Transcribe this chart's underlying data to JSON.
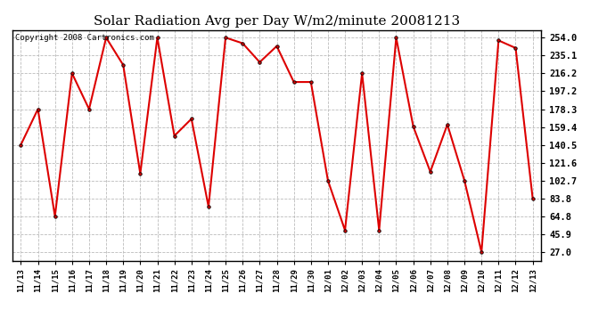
{
  "title": "Solar Radiation Avg per Day W/m2/minute 20081213",
  "copyright": "Copyright 2008 Cartronics.com",
  "labels": [
    "11/13",
    "11/14",
    "11/15",
    "11/16",
    "11/17",
    "11/18",
    "11/19",
    "11/20",
    "11/21",
    "11/22",
    "11/23",
    "11/24",
    "11/25",
    "11/26",
    "11/27",
    "11/28",
    "11/29",
    "11/30",
    "12/01",
    "12/02",
    "12/03",
    "12/04",
    "12/05",
    "12/06",
    "12/07",
    "12/08",
    "12/09",
    "12/10",
    "12/11",
    "12/12",
    "12/13"
  ],
  "values": [
    140.5,
    178.3,
    64.8,
    216.2,
    178.3,
    254.0,
    225.0,
    110.0,
    254.0,
    150.0,
    168.0,
    75.0,
    254.0,
    248.0,
    228.0,
    245.0,
    207.0,
    207.0,
    102.7,
    50.0,
    216.2,
    50.0,
    254.0,
    160.0,
    112.0,
    162.0,
    102.7,
    27.0,
    251.0,
    243.0,
    83.8
  ],
  "line_color": "#dd0000",
  "marker_color": "#dd0000",
  "marker_edge_color": "#000000",
  "bg_color": "#ffffff",
  "plot_bg_color": "#ffffff",
  "grid_color": "#bbbbbb",
  "yticks": [
    27.0,
    45.9,
    64.8,
    83.8,
    102.7,
    121.6,
    140.5,
    159.4,
    178.3,
    197.2,
    216.2,
    235.1,
    254.0
  ],
  "ylim": [
    18.0,
    262.0
  ],
  "title_fontsize": 11,
  "copyright_fontsize": 6.5,
  "tick_fontsize": 7.5,
  "xtick_fontsize": 6.5
}
